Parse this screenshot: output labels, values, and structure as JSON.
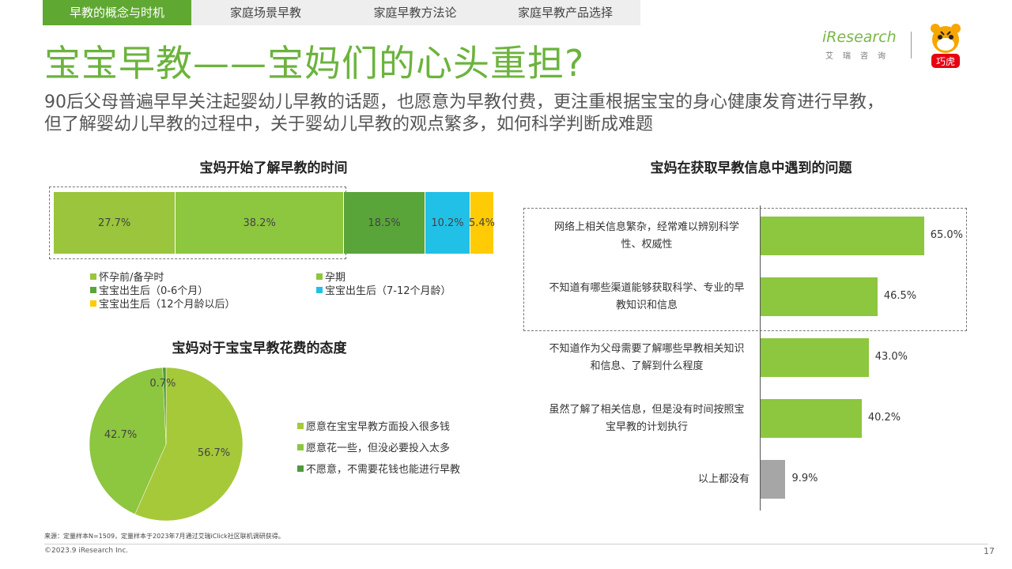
{
  "tabs": [
    {
      "label": "早教的概念与时机",
      "active": true
    },
    {
      "label": "家庭场景早教",
      "active": false
    },
    {
      "label": "家庭早教方法论",
      "active": false
    },
    {
      "label": "家庭早教产品选择",
      "active": false
    }
  ],
  "page_title": "宝宝早教——宝妈们的心头重担?",
  "subtitle_line1": "90后父母普遍早早关注起婴幼儿早教的话题，也愿意为早教付费，更注重根据宝宝的身心健康发育进行早教，",
  "subtitle_line2": "但了解婴幼儿早教的过程中，关于婴幼儿早教的观点繁多，如何科学判断成难题",
  "logo": {
    "brand": "iResearch",
    "sub": "艾瑞咨询",
    "mascot_text": "巧虎"
  },
  "colors": {
    "green_light": "#9ac53c",
    "green_mid": "#8dc63f",
    "green_dark": "#5aa53a",
    "cyan": "#21c0e7",
    "yellow": "#ffcb05",
    "grey": "#a6a6a6"
  },
  "chart_data": [
    {
      "type": "bar",
      "orientation": "horizontal-stacked-100",
      "title": "宝妈开始了解早教的时间",
      "series": [
        {
          "name": "怀孕前/备孕时",
          "value": 27.7,
          "label": "27.7%",
          "color": "#9ac53c"
        },
        {
          "name": "孕期",
          "value": 38.2,
          "label": "38.2%",
          "color": "#8dc63f"
        },
        {
          "name": "宝宝出生后（0-6个月）",
          "value": 18.5,
          "label": "18.5%",
          "color": "#5aa53a"
        },
        {
          "name": "宝宝出生后（7-12个月龄）",
          "value": 10.2,
          "label": "10.2%",
          "color": "#21c0e7"
        },
        {
          "name": "宝宝出生后（12个月龄以后）",
          "value": 5.4,
          "label": "5.4%",
          "color": "#ffcb05"
        }
      ],
      "legend_placement": "bottom"
    },
    {
      "type": "pie",
      "title": "宝妈对于宝宝早教花费的态度",
      "slices": [
        {
          "name": "愿意在宝宝早教方面投入很多钱",
          "value": 56.7,
          "label": "56.7%",
          "color": "#a6c93a"
        },
        {
          "name": "愿意花一些，但没必要投入太多",
          "value": 42.7,
          "label": "42.7%",
          "color": "#8dc63f"
        },
        {
          "name": "不愿意，不需要花钱也能进行早教",
          "value": 0.7,
          "label": "0.7%",
          "color": "#4f9a3a"
        }
      ],
      "legend_placement": "right"
    },
    {
      "type": "bar",
      "orientation": "horizontal",
      "title": "宝妈在获取早教信息中遇到的问题",
      "categories": [
        [
          "网络上相关信息繁杂，经常难以辨别科学",
          "性、权威性"
        ],
        [
          "不知道有哪些渠道能够获取科学、专业的早",
          "教知识和信息"
        ],
        [
          "不知道作为父母需要了解哪些早教相关知识",
          "和信息、了解到什么程度"
        ],
        [
          "虽然了解了相关信息，但是没有时间按照宝",
          "宝早教的计划执行"
        ],
        [
          "以上都没有"
        ]
      ],
      "values": [
        65.0,
        46.5,
        43.0,
        40.2,
        9.9
      ],
      "value_labels": [
        "65.0%",
        "46.5%",
        "43.0%",
        "40.2%",
        "9.9%"
      ],
      "bar_colors": [
        "#8dc63f",
        "#8dc63f",
        "#8dc63f",
        "#8dc63f",
        "#a6a6a6"
      ],
      "xlim": [
        0,
        100
      ]
    }
  ],
  "footer": {
    "source": "来源：定量样本N=1509，定量样本于2023年7月通过艾瑞iClick社区联机调研获得。",
    "copyright": "©2023.9 iResearch Inc.",
    "page": "17"
  }
}
